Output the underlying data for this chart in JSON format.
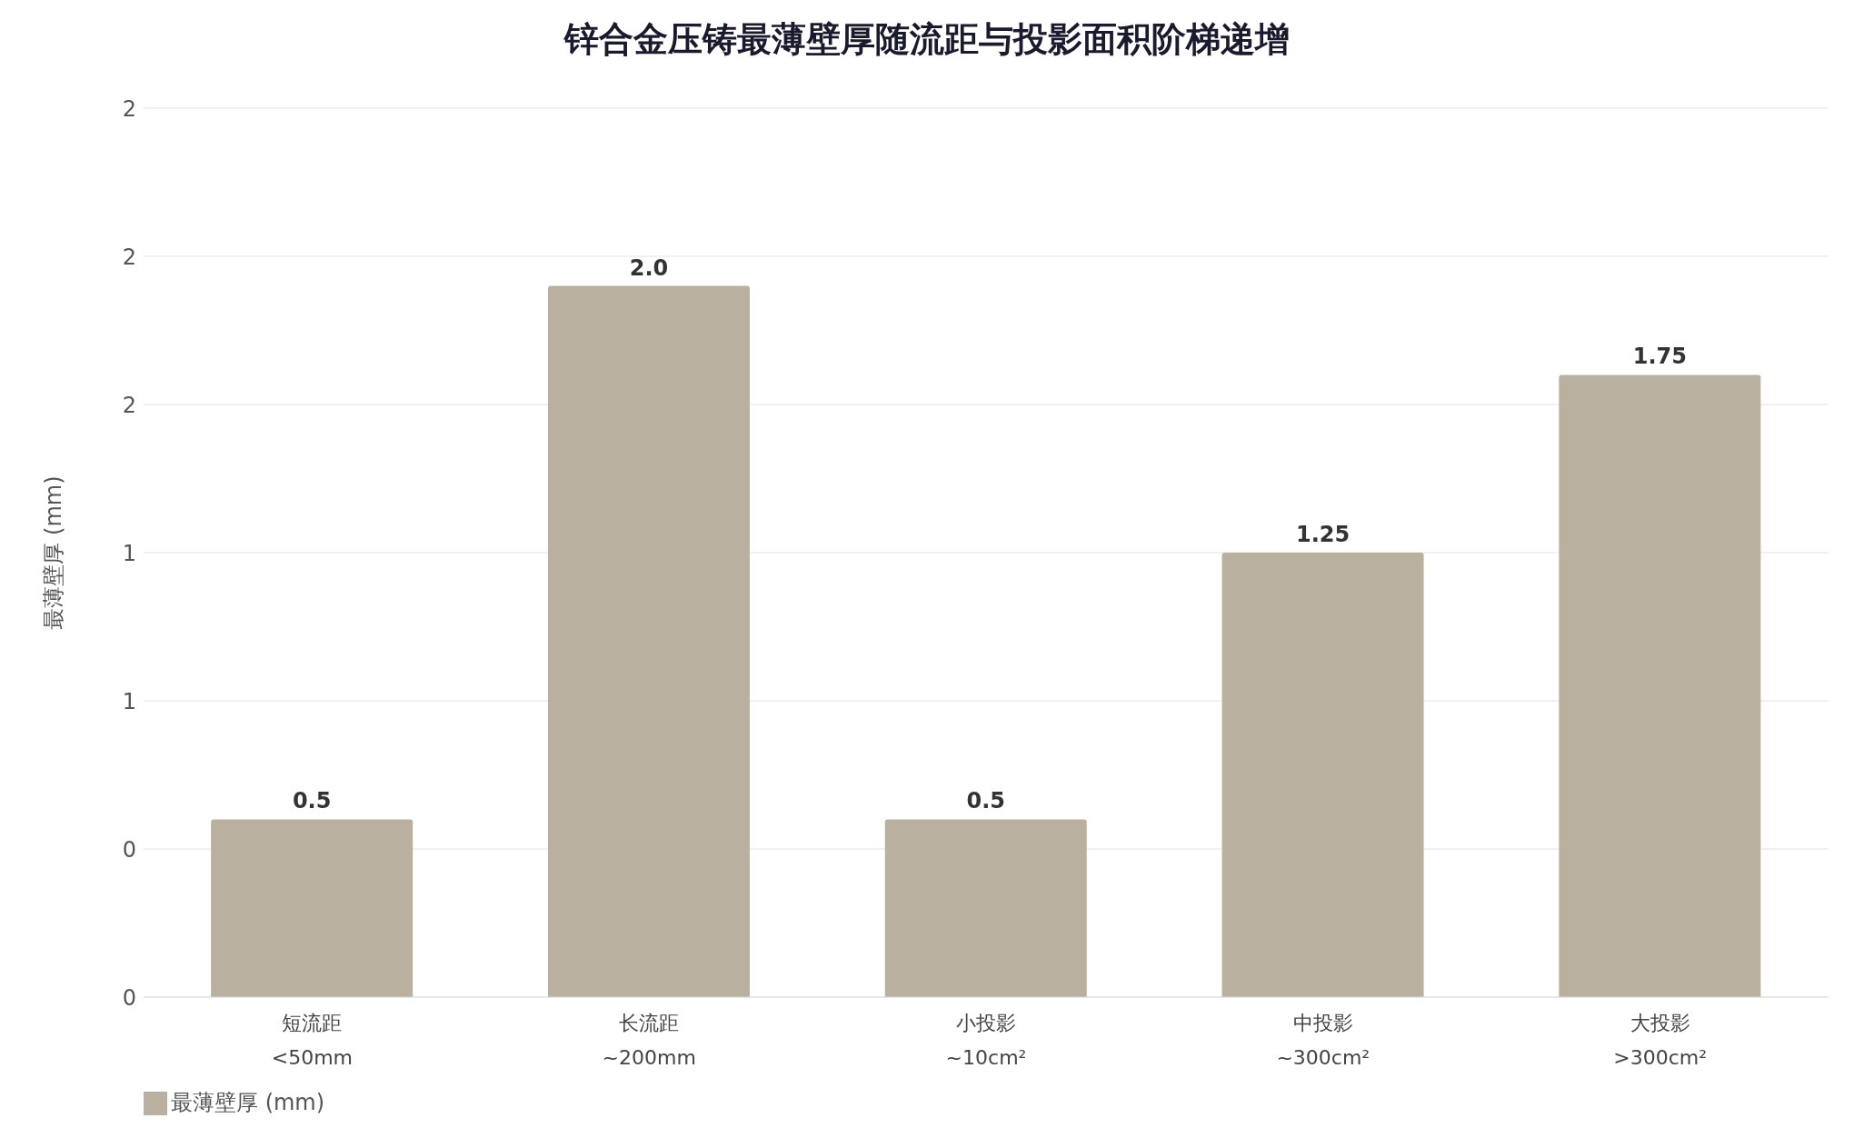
{
  "chart_data": {
    "type": "bar",
    "title": "锌合金压铸最薄壁厚随流距与投影面积阶梯递增",
    "ylabel": "最薄壁厚 (mm)",
    "categories": [
      "短流距\n<50mm",
      "长流距\n~200mm",
      "小投影\n~10cm²",
      "中投影\n~300cm²",
      "大投影\n>300cm²"
    ],
    "series": [
      {
        "name": "最薄壁厚 (mm)",
        "color": "#b9b09f",
        "values": [
          0.5,
          2.0,
          0.5,
          1.25,
          1.75
        ],
        "value_labels": [
          "0.5",
          "2.0",
          "0.5",
          "1.25",
          "1.75"
        ]
      }
    ],
    "ylim": [
      0,
      2.5
    ],
    "yticks": [
      {
        "value": 0,
        "label": "0"
      },
      {
        "value": 0.4167,
        "label": "0"
      },
      {
        "value": 0.8333,
        "label": "1"
      },
      {
        "value": 1.25,
        "label": "1"
      },
      {
        "value": 1.6667,
        "label": "2"
      },
      {
        "value": 2.0833,
        "label": "2"
      },
      {
        "value": 2.5,
        "label": "2"
      }
    ],
    "grid": "y",
    "legend": "bottom left"
  }
}
